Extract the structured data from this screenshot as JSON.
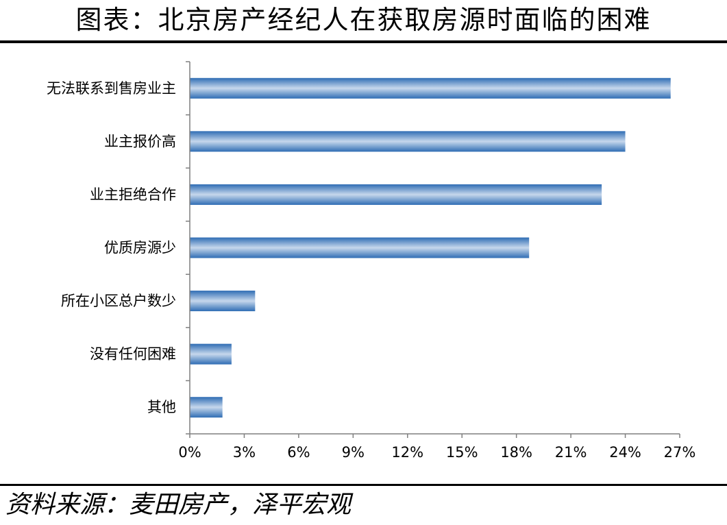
{
  "header": {
    "title": "图表：北京房产经纪人在获取房源时面临的困难"
  },
  "footer": {
    "source": "资料来源：麦田房产，泽平宏观"
  },
  "colors": {
    "bar_edge": "#2f6db4",
    "bar_center": "#c6d7ec",
    "axis": "#7f7f7f"
  },
  "chart_data": {
    "type": "bar",
    "orientation": "horizontal",
    "title": "",
    "xlabel": "",
    "ylabel": "",
    "categories": [
      "无法联系到售房业主",
      "业主报价高",
      "业主拒绝合作",
      "优质房源少",
      "所在小区总户数少",
      "没有任何困难",
      "其他"
    ],
    "values": [
      26.5,
      24.0,
      22.7,
      18.7,
      3.6,
      2.3,
      1.8
    ],
    "xlim": [
      0,
      27
    ],
    "xticks": [
      0,
      3,
      6,
      9,
      12,
      15,
      18,
      21,
      24,
      27
    ],
    "xtick_labels": [
      "0%",
      "3%",
      "6%",
      "9%",
      "12%",
      "15%",
      "18%",
      "21%",
      "24%",
      "27%"
    ],
    "grid": false,
    "legend": "none"
  }
}
